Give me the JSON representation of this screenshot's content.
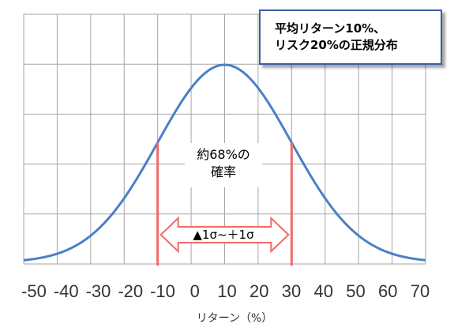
{
  "chart_data": {
    "type": "line",
    "title": "",
    "xlabel": "リターン（%）",
    "ylabel": "",
    "x_ticks": [
      "-50",
      "-40",
      "-30",
      "-20",
      "-10",
      "0",
      "10",
      "20",
      "30",
      "40",
      "50",
      "60",
      "70"
    ],
    "xlim": [
      -50,
      70
    ],
    "grid": true,
    "series": [
      {
        "mean": 10,
        "sd": 20,
        "color": "#4a80c6"
      }
    ],
    "markers": [
      {
        "x": -10,
        "color": "#f26a6a"
      },
      {
        "x": 30,
        "color": "#f26a6a"
      }
    ],
    "annotations": {
      "info_line1": "平均リターン10%、",
      "info_line2": "リスク20%の正規分布",
      "prob_line1": "約68%の",
      "prob_line2": "確率",
      "range_label": "▲1σ~＋1σ"
    },
    "colors": {
      "grid": "#a6a6a6",
      "curve": "#4a80c6",
      "marker": "#f26a6a",
      "box_border": "#3b5ea8"
    }
  }
}
